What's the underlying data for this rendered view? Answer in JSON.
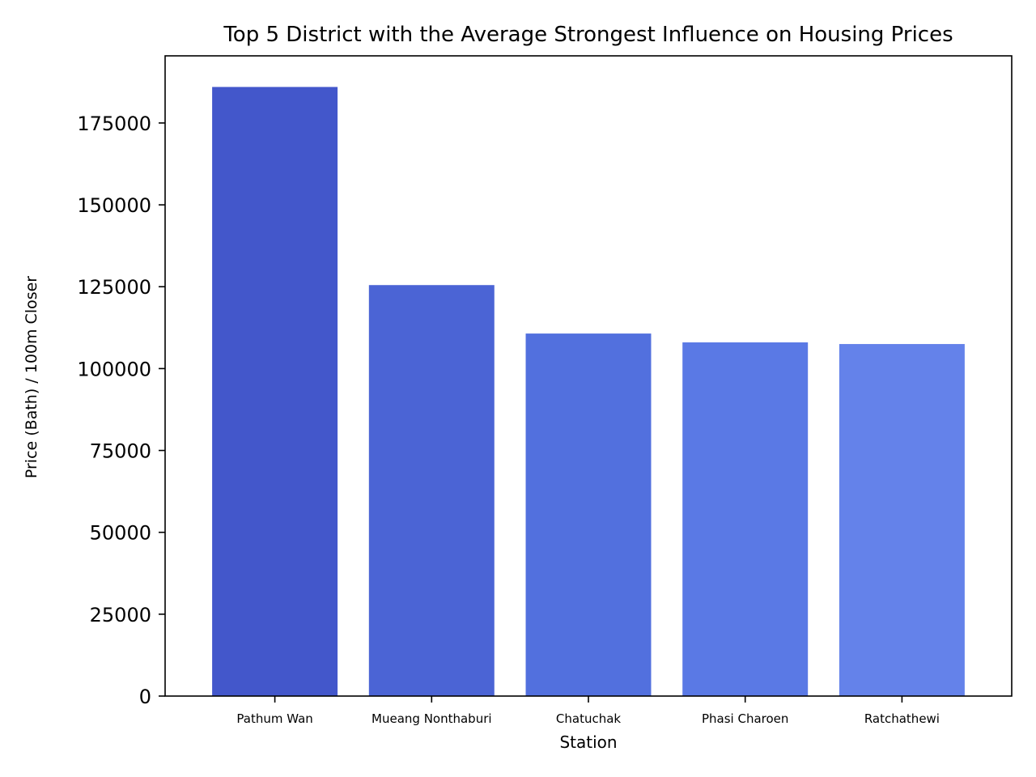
{
  "chart_data": {
    "type": "bar",
    "title": "Top 5 District with the Average Strongest Influence on Housing Prices",
    "xlabel": "Station",
    "ylabel": "Price (Bath) / 100m Closer",
    "categories": [
      "Pathum Wan",
      "Mueang Nonthaburi",
      "Chatuchak",
      "Phasi Charoen",
      "Ratchathewi"
    ],
    "values": [
      186000,
      125500,
      110700,
      108000,
      107500
    ],
    "colors": [
      "#4357cb",
      "#4b64d5",
      "#5270de",
      "#5a79e5",
      "#6482ea"
    ],
    "yticks": [
      0,
      25000,
      50000,
      75000,
      100000,
      125000,
      150000,
      175000
    ],
    "ytick_labels": [
      "0",
      "25000",
      "50000",
      "75000",
      "100000",
      "125000",
      "150000",
      "175000"
    ],
    "ylim": [
      0,
      195500
    ],
    "grid": false,
    "legend": "none"
  }
}
